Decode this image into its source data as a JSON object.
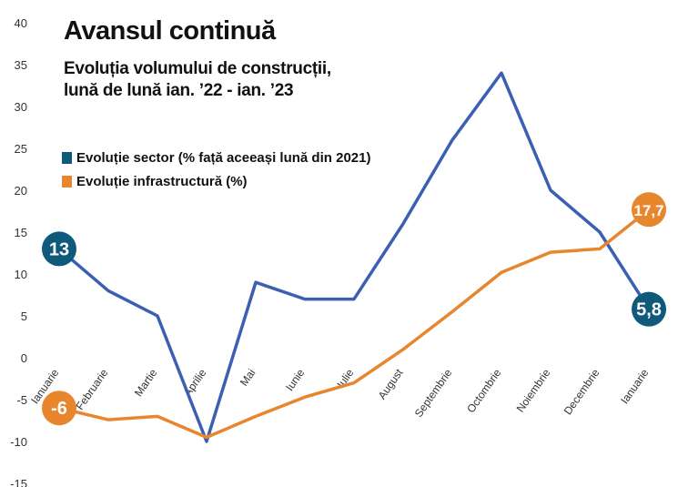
{
  "colors": {
    "sector": "#3b5fb3",
    "infrastructure": "#e8862d",
    "badge_sector": "#0f5a7a",
    "badge_infrastructure": "#e8862d",
    "grid_text": "#333333"
  },
  "chart_data": {
    "type": "line",
    "title": "Avansul continuă",
    "subtitle_line1": "Evoluția volumului de construcții,",
    "subtitle_line2": "lună de lună ian. ’22 - ian. ’23",
    "categories": [
      "Ianuarie",
      "Februarie",
      "Martie",
      "Aprilie",
      "Mai",
      "Iunie",
      "Iulie",
      "August",
      "Septembrie",
      "Octombrie",
      "Noiembrie",
      "Decembrie",
      "Ianuarie"
    ],
    "yticks": [
      "40",
      "35",
      "30",
      "25",
      "20",
      "15",
      "10",
      "5",
      "0",
      "-5",
      "-10",
      "-15"
    ],
    "ylim": [
      -15,
      40
    ],
    "grid": false,
    "legend_position": "top-left",
    "series": [
      {
        "name": "Evoluție sector (% față aceeași lună din 2021)",
        "values": [
          13,
          8,
          5,
          -10,
          9,
          7,
          7,
          16,
          26,
          34,
          20,
          15,
          5.8
        ]
      },
      {
        "name": "Evoluție infrastructură (%)",
        "values": [
          -6,
          -7.4,
          -7,
          -9.5,
          -7,
          -4.7,
          -3,
          1,
          5.5,
          10.2,
          12.6,
          13,
          17.7
        ]
      }
    ],
    "annotations": [
      {
        "text": "13",
        "series": 0,
        "index": 0
      },
      {
        "text": "5,8",
        "series": 0,
        "index": 12
      },
      {
        "text": "-6",
        "series": 1,
        "index": 0
      },
      {
        "text": "17,7",
        "series": 1,
        "index": 12
      }
    ]
  }
}
